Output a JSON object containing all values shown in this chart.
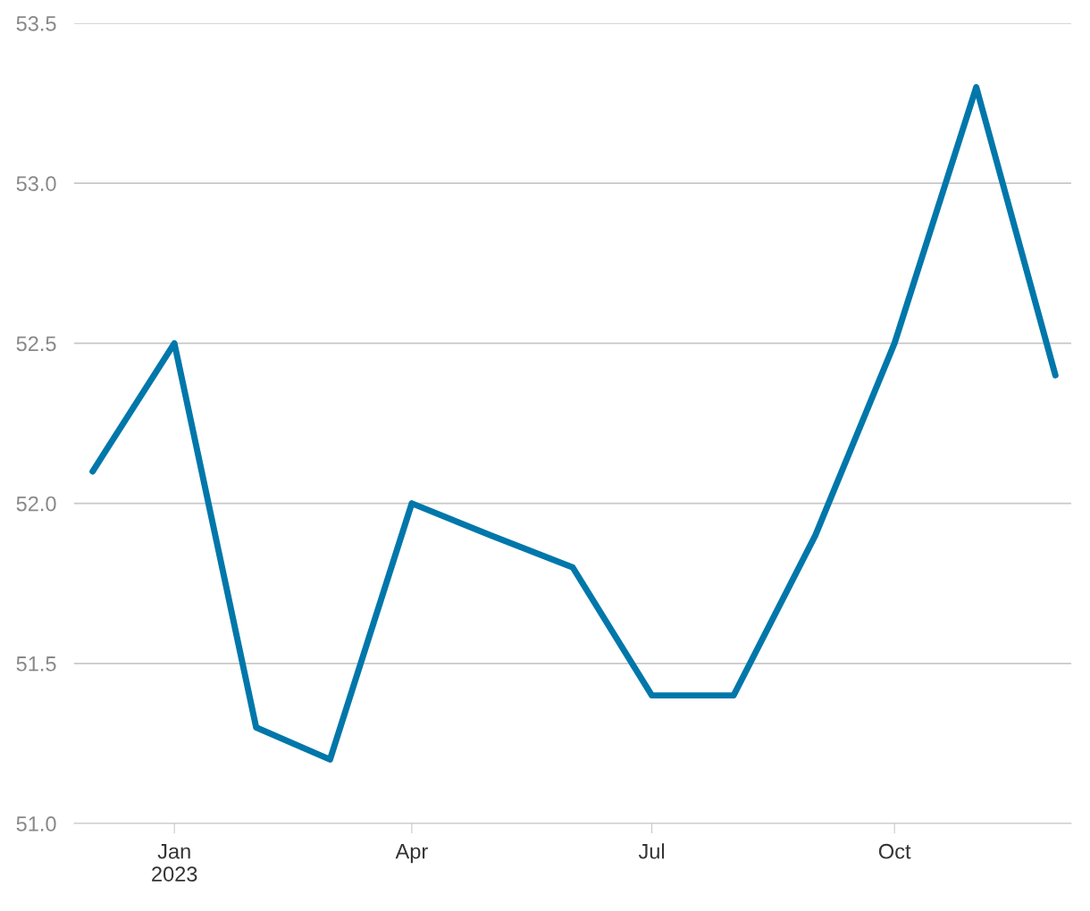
{
  "chart_data": {
    "type": "line",
    "x": [
      "2022-12-01",
      "2023-01-01",
      "2023-02-01",
      "2023-03-01",
      "2023-04-01",
      "2023-05-01",
      "2023-06-01",
      "2023-07-01",
      "2023-08-01",
      "2023-09-01",
      "2023-10-01",
      "2023-11-01",
      "2023-12-01"
    ],
    "series": [
      {
        "color": "#0077aa",
        "values": [
          52.1,
          52.5,
          51.3,
          51.2,
          52.0,
          51.9,
          51.8,
          51.4,
          51.4,
          51.9,
          52.5,
          53.3,
          52.4
        ]
      }
    ],
    "xlim": [
      "2022-11-24",
      "2023-12-07"
    ],
    "xticks": [
      {
        "value": "2023-01-01",
        "label": "Jan\n2023"
      },
      {
        "value": "2023-04-01",
        "label": "Apr"
      },
      {
        "value": "2023-07-01",
        "label": "Jul"
      },
      {
        "value": "2023-10-01",
        "label": "Oct"
      }
    ],
    "ylim": [
      51.0,
      53.5
    ],
    "yticks": [
      {
        "value": 51.0,
        "label": "51.0"
      },
      {
        "value": 51.5,
        "label": "51.5"
      },
      {
        "value": 52.0,
        "label": "52.0"
      },
      {
        "value": 52.5,
        "label": "52.5"
      },
      {
        "value": 53.0,
        "label": "53.0"
      },
      {
        "value": 53.5,
        "label": "53.5"
      }
    ],
    "grid": "y",
    "marker": "none",
    "line_style": "solid",
    "legend": false
  }
}
